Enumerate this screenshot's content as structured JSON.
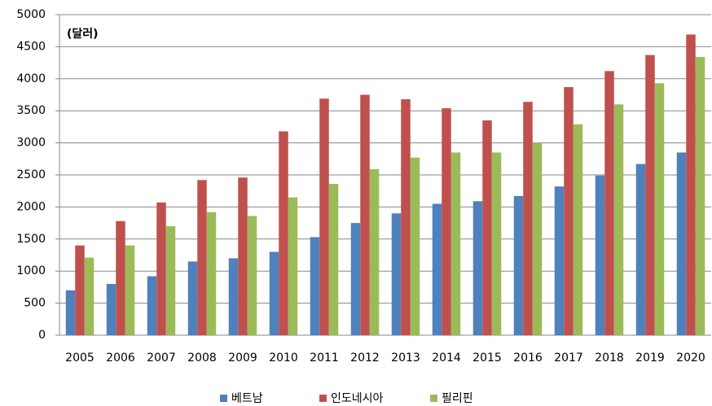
{
  "chart_data": {
    "type": "bar",
    "annotation": "(달러)",
    "categories": [
      "2005",
      "2006",
      "2007",
      "2008",
      "2009",
      "2010",
      "2011",
      "2012",
      "2013",
      "2014",
      "2015",
      "2016",
      "2017",
      "2018",
      "2019",
      "2020"
    ],
    "series": [
      {
        "name": "베트남",
        "color": "#4f81bd",
        "values": [
          700,
          800,
          920,
          1150,
          1200,
          1300,
          1530,
          1750,
          1900,
          2050,
          2090,
          2170,
          2320,
          2490,
          2670,
          2850
        ]
      },
      {
        "name": "인도네시아",
        "color": "#c0504d",
        "values": [
          1400,
          1780,
          2070,
          2420,
          2460,
          3180,
          3690,
          3750,
          3680,
          3540,
          3350,
          3640,
          3870,
          4120,
          4370,
          4690
        ]
      },
      {
        "name": "필리핀",
        "color": "#9bbb59",
        "values": [
          1210,
          1400,
          1700,
          1920,
          1860,
          2150,
          2360,
          2590,
          2770,
          2850,
          2850,
          3000,
          3290,
          3600,
          3930,
          4340
        ]
      }
    ],
    "ylim": [
      0,
      5000
    ],
    "yticks": [
      0,
      500,
      1000,
      1500,
      2000,
      2500,
      3000,
      3500,
      4000,
      4500,
      5000
    ],
    "grid": true,
    "legend": "bottom"
  }
}
